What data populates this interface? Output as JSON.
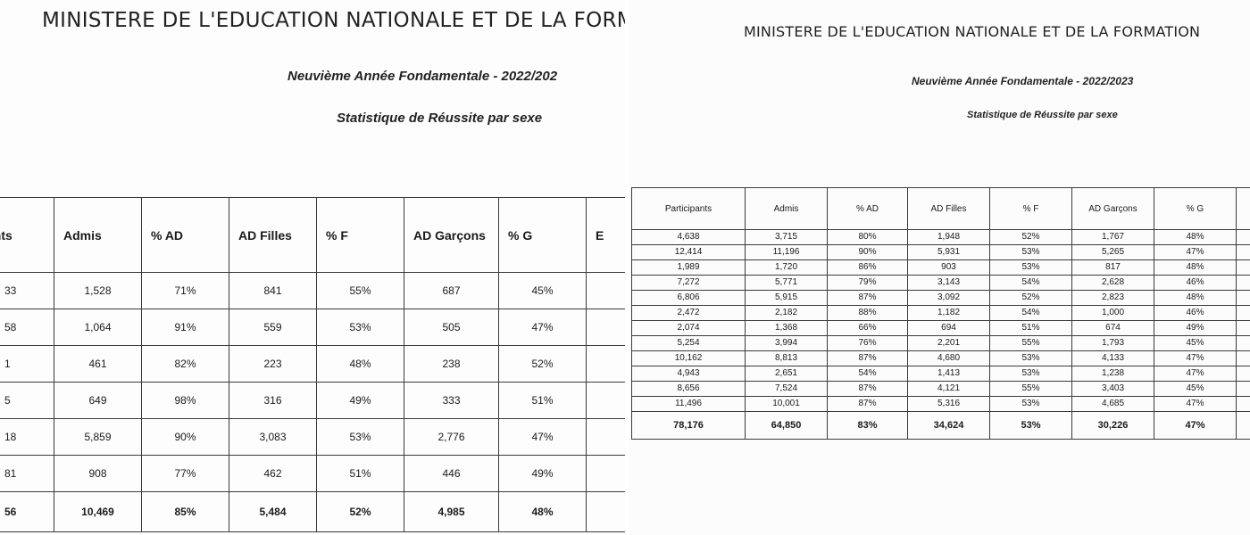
{
  "left": {
    "ministry": "MINISTERE DE L'EDUCATION NATIONALE ET DE LA FORMA",
    "subtitle": "Neuvième Année Fondamentale - 2022/202",
    "caption": "Statistique de Réussite par sexe",
    "headers": [
      "ants",
      "Admis",
      "% AD",
      "AD Filles",
      "% F",
      "AD Garçons",
      "% G",
      "E"
    ],
    "rows": [
      [
        "33",
        "1,528",
        "71%",
        "841",
        "55%",
        "687",
        "45%"
      ],
      [
        "58",
        "1,064",
        "91%",
        "559",
        "53%",
        "505",
        "47%"
      ],
      [
        "1",
        "461",
        "82%",
        "223",
        "48%",
        "238",
        "52%"
      ],
      [
        "5",
        "649",
        "98%",
        "316",
        "49%",
        "333",
        "51%"
      ],
      [
        "18",
        "5,859",
        "90%",
        "3,083",
        "53%",
        "2,776",
        "47%"
      ],
      [
        "81",
        "908",
        "77%",
        "462",
        "51%",
        "446",
        "49%"
      ]
    ],
    "total": [
      "56",
      "10,469",
      "85%",
      "5,484",
      "52%",
      "4,985",
      "48%"
    ]
  },
  "right": {
    "ministry": "MINISTERE DE L'EDUCATION NATIONALE ET DE LA FORMATION",
    "subtitle": "Neuvième Année Fondamentale - 2022/2023",
    "caption": "Statistique de Réussite par sexe",
    "headers": [
      "Participants",
      "Admis",
      "% AD",
      "AD Filles",
      "% F",
      "AD Garçons",
      "% G",
      ""
    ],
    "rows": [
      [
        "4,638",
        "3,715",
        "80%",
        "1,948",
        "52%",
        "1,767",
        "48%"
      ],
      [
        "12,414",
        "11,196",
        "90%",
        "5,931",
        "53%",
        "5,265",
        "47%"
      ],
      [
        "1,989",
        "1,720",
        "86%",
        "903",
        "53%",
        "817",
        "48%"
      ],
      [
        "7,272",
        "5,771",
        "79%",
        "3,143",
        "54%",
        "2,628",
        "46%"
      ],
      [
        "6,806",
        "5,915",
        "87%",
        "3,092",
        "52%",
        "2,823",
        "48%"
      ],
      [
        "2,472",
        "2,182",
        "88%",
        "1,182",
        "54%",
        "1,000",
        "46%"
      ],
      [
        "2,074",
        "1,368",
        "66%",
        "694",
        "51%",
        "674",
        "49%"
      ],
      [
        "5,254",
        "3,994",
        "76%",
        "2,201",
        "55%",
        "1,793",
        "45%"
      ],
      [
        "10,162",
        "8,813",
        "87%",
        "4,680",
        "53%",
        "4,133",
        "47%"
      ],
      [
        "4,943",
        "2,651",
        "54%",
        "1,413",
        "53%",
        "1,238",
        "47%"
      ],
      [
        "8,656",
        "7,524",
        "87%",
        "4,121",
        "55%",
        "3,403",
        "45%"
      ],
      [
        "11,496",
        "10,001",
        "87%",
        "5,316",
        "53%",
        "4,685",
        "47%"
      ]
    ],
    "total": [
      "78,176",
      "64,850",
      "83%",
      "34,624",
      "53%",
      "30,226",
      "47%"
    ]
  }
}
